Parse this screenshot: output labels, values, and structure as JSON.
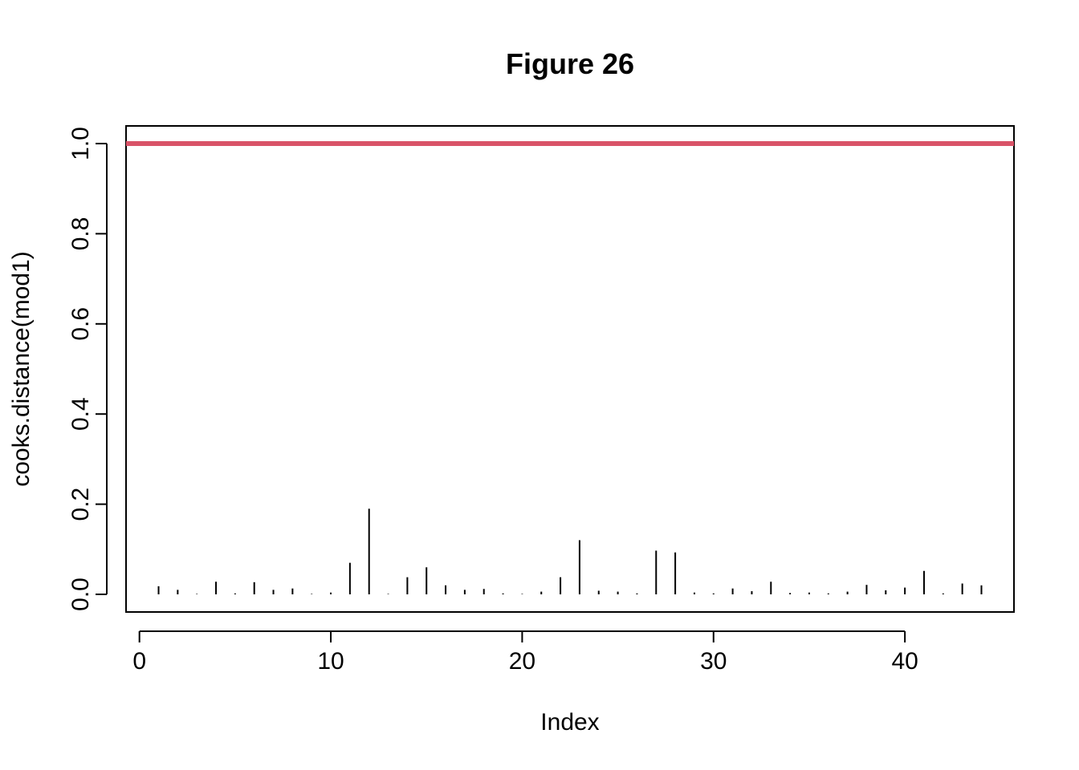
{
  "chart_data": {
    "type": "bar",
    "title": "Figure 26",
    "xlabel": "Index",
    "ylabel": "cooks.distance(mod1)",
    "xlim": [
      -0.7,
      45.7
    ],
    "ylim": [
      0,
      1.0
    ],
    "x_ticks": [
      0,
      10,
      20,
      30,
      40
    ],
    "y_ticks": [
      0.0,
      0.2,
      0.4,
      0.6,
      0.8,
      1.0
    ],
    "x_tick_labels": [
      "0",
      "10",
      "20",
      "30",
      "40"
    ],
    "y_tick_labels": [
      "0.0",
      "0.2",
      "0.4",
      "0.6",
      "0.8",
      "1.0"
    ],
    "grid": false,
    "style": "histogram spikes",
    "x": [
      1,
      2,
      3,
      4,
      5,
      6,
      7,
      8,
      9,
      10,
      11,
      12,
      13,
      14,
      15,
      16,
      17,
      18,
      19,
      20,
      21,
      22,
      23,
      24,
      25,
      26,
      27,
      28,
      29,
      30,
      31,
      32,
      33,
      34,
      35,
      36,
      37,
      38,
      39,
      40,
      41,
      42,
      43,
      44
    ],
    "values": [
      0.018,
      0.01,
      0.001,
      0.028,
      0.002,
      0.027,
      0.01,
      0.013,
      0.001,
      0.004,
      0.07,
      0.19,
      0.001,
      0.038,
      0.06,
      0.02,
      0.01,
      0.012,
      0.002,
      0.001,
      0.006,
      0.038,
      0.12,
      0.008,
      0.006,
      0.002,
      0.097,
      0.093,
      0.004,
      0.002,
      0.013,
      0.007,
      0.028,
      0.003,
      0.004,
      0.002,
      0.006,
      0.021,
      0.009,
      0.015,
      0.052,
      0.002,
      0.024,
      0.02
    ],
    "reference_line": {
      "y": 1.0,
      "color": "#d95368"
    },
    "colors": {
      "spikes": "#000000",
      "frame": "#000000"
    }
  }
}
